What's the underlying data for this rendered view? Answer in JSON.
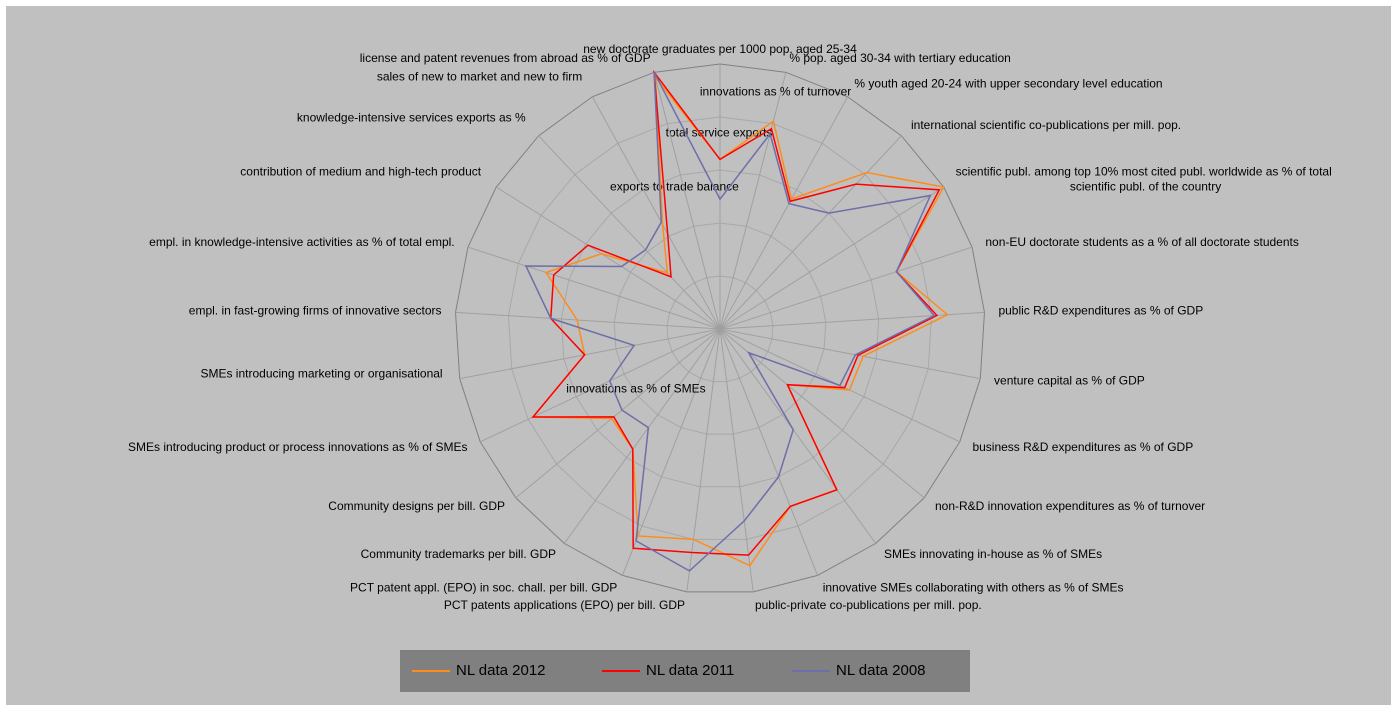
{
  "chart_data": {
    "type": "radar",
    "categories": [
      "new doctorate graduates per 1000 pop. aged 25-34",
      "% pop. aged 30-34 with tertiary education",
      "% youth aged 20-24 with upper secondary level education",
      "international scientific co-publications per mill. pop.",
      "scientific publ. among top 10% most cited publ. worldwide as % of total scientific publ. of the country",
      "non-EU doctorate students as a % of all doctorate students",
      "public R&D expenditures as % of GDP",
      "venture capital as % of GDP",
      "business R&D expenditures as % of GDP",
      "non-R&D innovation expenditures as % of turnover",
      "SMEs innovating in-house as % of SMEs",
      "innovative SMEs collaborating with others as % of SMEs",
      "public-private co-publications per mill. pop.",
      "PCT patents applications (EPO) per bill. GDP",
      "PCT patent appl. (EPO) in soc. chall. per bill. GDP",
      "Community trademarks per bill. GDP",
      "Community designs per bill. GDP",
      "SMEs introducing product or process innovations as % of SMEs",
      "SMEs introducing marketing or organisational innovations as % of SMEs",
      "empl. in fast-growing firms of innovative sectors",
      "empl. in knowledge-intensive activities as % of total empl.",
      "contribution of medium and high-tech product exports to trade balance",
      "knowledge-intensive services exports as % total service exports",
      "sales of new to market and new to firm innovations as % of turnover",
      "license and patent revenues from abroad as % of GDP"
    ],
    "series": [
      {
        "name": "NL data 2012",
        "color": "#ff8c1a",
        "values": [
          0.64,
          0.81,
          0.56,
          0.81,
          1.0,
          0.7,
          0.86,
          0.55,
          0.54,
          0.33,
          0.75,
          0.72,
          0.9,
          0.8,
          0.84,
          0.56,
          0.53,
          0.78,
          0.52,
          0.54,
          0.69,
          0.53,
          0.29,
          0.45,
          0.98
        ]
      },
      {
        "name": "NL data 2011",
        "color": "#ff0000",
        "values": [
          0.64,
          0.78,
          0.55,
          0.75,
          0.98,
          0.7,
          0.82,
          0.53,
          0.52,
          0.33,
          0.75,
          0.72,
          0.86,
          0.85,
          0.89,
          0.56,
          0.52,
          0.78,
          0.52,
          0.64,
          0.66,
          0.59,
          0.27,
          0.41,
          1.0
        ]
      },
      {
        "name": "NL data 2008",
        "color": "#6e6eaa",
        "values": [
          0.49,
          0.76,
          0.54,
          0.6,
          0.94,
          0.7,
          0.81,
          0.52,
          0.5,
          0.14,
          0.47,
          0.6,
          0.73,
          0.92,
          0.86,
          0.46,
          0.48,
          0.46,
          0.33,
          0.64,
          0.77,
          0.44,
          0.41,
          0.46,
          1.0
        ]
      }
    ],
    "rlim": [
      0,
      1
    ],
    "rticks": [
      0.2,
      0.4,
      0.6,
      0.8,
      1.0
    ],
    "grid": true,
    "legend": "bottom"
  }
}
